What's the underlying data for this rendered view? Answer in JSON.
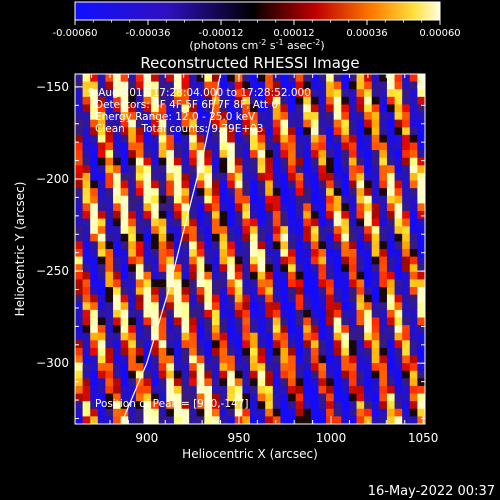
{
  "chart_data": {
    "type": "heatmap",
    "title": "Reconstructed RHESSI Image",
    "xlabel": "Heliocentric X (arcsec)",
    "ylabel": "Heliocentric Y (arcsec)",
    "xlim": [
      861,
      1051
    ],
    "ylim": [
      -333,
      -143
    ],
    "x_ticks": [
      900,
      950,
      1000,
      1050
    ],
    "y_ticks": [
      -150,
      -200,
      -250,
      -300
    ],
    "colorbar": {
      "range": [
        -0.0006,
        0.0006
      ],
      "tick_labels": [
        "-0.00060",
        "-0.00036",
        "-0.00012",
        "0.00012",
        "0.00036",
        "0.00060"
      ],
      "units_label": "(photons cm",
      "units_exp1": "-2",
      "units_mid": " s",
      "units_exp2": "-1",
      "units_mid2": " asec",
      "units_exp3": "-2",
      "units_end": ")"
    },
    "annotations": {
      "line1": "9-Aug-2013 17:28:04.000 to 17:28:52.000",
      "line2": "Detectors: 3F 4F 5F 6F 7F 8F, Att 0",
      "line3": "Energy Range: 12.0 - 25.0 keV",
      "line4": "Clean     Total counts: 9.79E+03",
      "peak": "Position of Peak = [980,-147]"
    },
    "limb_curve": [
      [
        886,
        -333
      ],
      [
        900,
        -300
      ],
      [
        912,
        -260
      ],
      [
        922,
        -220
      ],
      [
        931,
        -185
      ],
      [
        940,
        -143
      ]
    ],
    "footer": "16-May-2022 00:37",
    "colors": {
      "negative": "#0000ff",
      "zero": "#000000",
      "positive_low": "#ff0000",
      "positive_mid": "#ffa500",
      "positive_high": "#ffffc8"
    }
  }
}
